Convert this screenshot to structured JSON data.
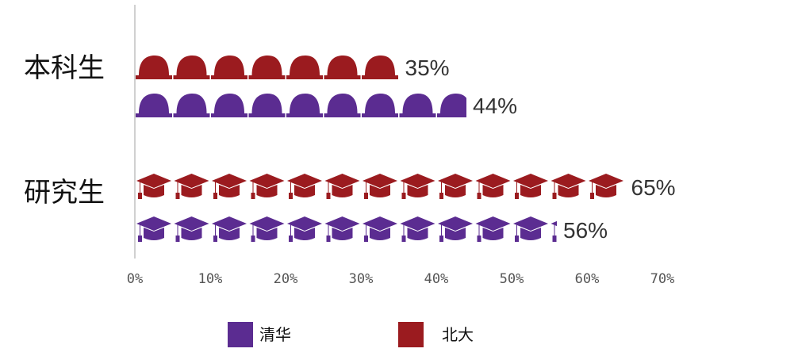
{
  "chart_data": {
    "type": "bar",
    "orientation": "horizontal",
    "style": "pictogram",
    "categories": [
      "本科生",
      "研究生"
    ],
    "series": [
      {
        "name": "北大",
        "values": [
          35,
          65
        ],
        "color": "#9b1b1f",
        "icons": [
          "baseball-cap-icon",
          "mortarboard-icon"
        ]
      },
      {
        "name": "清华",
        "values": [
          44,
          56
        ],
        "color": "#5b2c91",
        "icons": [
          "baseball-cap-icon",
          "mortarboard-icon"
        ]
      }
    ],
    "value_labels": [
      [
        "35%",
        "65%"
      ],
      [
        "44%",
        "56%"
      ]
    ],
    "xlim": [
      0,
      70
    ],
    "xticks": [
      "0%",
      "10%",
      "20%",
      "30%",
      "40%",
      "50%",
      "60%",
      "70%"
    ],
    "icon_unit": {
      "本科生": 5,
      "研究生": 5
    },
    "legend": {
      "placement": "bottom",
      "entries": [
        {
          "name": "清华",
          "color": "#5b2c91"
        },
        {
          "name": "北大",
          "color": "#9b1b1f"
        }
      ]
    },
    "grid": false
  }
}
